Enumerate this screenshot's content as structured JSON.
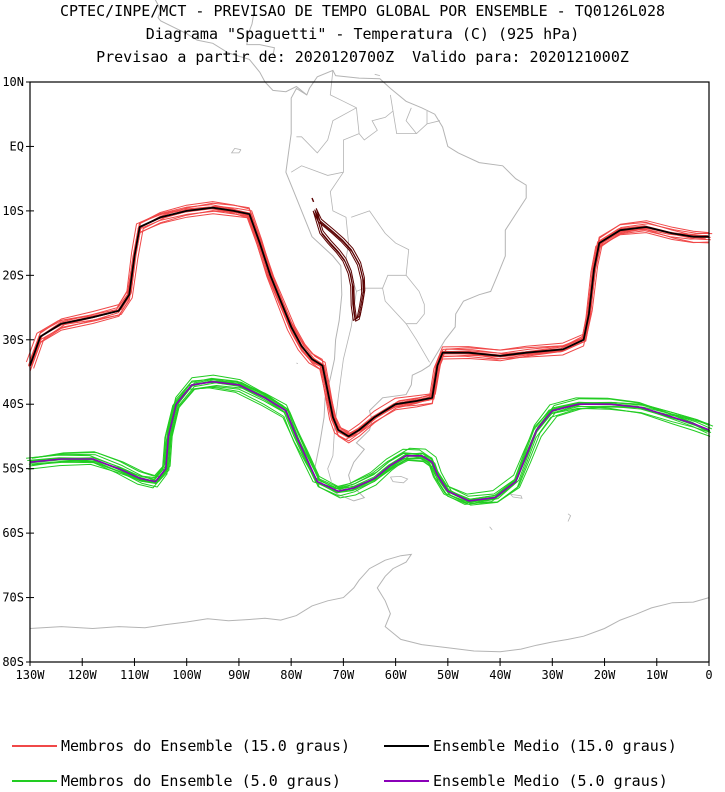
{
  "title": {
    "line1": "CPTEC/INPE/MCT - PREVISAO DE TEMPO GLOBAL POR ENSEMBLE - TQ0126L028",
    "line2": "Diagrama \"Spaguetti\" - Temperatura (C) (925 hPa)",
    "line3": "Previsao a partir de: 2020120700Z  Valido para: 2020121000Z"
  },
  "map": {
    "lon_range": [
      -130,
      0
    ],
    "lat_range": [
      -80,
      10
    ],
    "y_ticks": [
      {
        "value": 10,
        "label": "10N"
      },
      {
        "value": 0,
        "label": "EQ"
      },
      {
        "value": -10,
        "label": "10S"
      },
      {
        "value": -20,
        "label": "20S"
      },
      {
        "value": -30,
        "label": "30S"
      },
      {
        "value": -40,
        "label": "40S"
      },
      {
        "value": -50,
        "label": "50S"
      },
      {
        "value": -60,
        "label": "60S"
      },
      {
        "value": -70,
        "label": "70S"
      },
      {
        "value": -80,
        "label": "80S"
      }
    ],
    "x_ticks": [
      {
        "value": -130,
        "label": "130W"
      },
      {
        "value": -120,
        "label": "120W"
      },
      {
        "value": -110,
        "label": "110W"
      },
      {
        "value": -100,
        "label": "100W"
      },
      {
        "value": -90,
        "label": "90W"
      },
      {
        "value": -80,
        "label": "80W"
      },
      {
        "value": -70,
        "label": "70W"
      },
      {
        "value": -60,
        "label": "60W"
      },
      {
        "value": -50,
        "label": "50W"
      },
      {
        "value": -40,
        "label": "40W"
      },
      {
        "value": -30,
        "label": "30W"
      },
      {
        "value": -20,
        "label": "20W"
      },
      {
        "value": -10,
        "label": "10W"
      },
      {
        "value": 0,
        "label": "0"
      }
    ],
    "colors": {
      "members_15": "#f04848",
      "mean_15": "#000000",
      "members_5": "#22cc22",
      "mean_5": "#8a00b8",
      "coast": "#b4b4b4",
      "andes_contour": "#5a0000"
    }
  },
  "chart_data": {
    "type": "line",
    "title": "Diagrama \"Spaguetti\" - Temperatura (C) (925 hPa)",
    "x_axis": "longitude (degrees, negative = W)",
    "y_axis": "latitude (degrees, negative = S)",
    "xlim": [
      -130,
      0
    ],
    "ylim": [
      -80,
      10
    ],
    "series": [
      {
        "name": "Ensemble Medio (15.0 graus)",
        "points": [
          [
            -130,
            -34
          ],
          [
            -128,
            -29.5
          ],
          [
            -124,
            -27.5
          ],
          [
            -118,
            -26.5
          ],
          [
            -113,
            -25.5
          ],
          [
            -111,
            -23
          ],
          [
            -110,
            -17
          ],
          [
            -109,
            -12.5
          ],
          [
            -105,
            -11
          ],
          [
            -100,
            -10
          ],
          [
            -95,
            -9.5
          ],
          [
            -91,
            -10
          ],
          [
            -88,
            -10.5
          ],
          [
            -86,
            -15
          ],
          [
            -84,
            -20
          ],
          [
            -82,
            -24
          ],
          [
            -80,
            -28
          ],
          [
            -78,
            -31
          ],
          [
            -76,
            -33
          ],
          [
            -74,
            -34
          ],
          [
            -73,
            -38
          ],
          [
            -72,
            -42
          ],
          [
            -71,
            -44
          ],
          [
            -69,
            -45
          ],
          [
            -67,
            -44
          ],
          [
            -64,
            -42
          ],
          [
            -60,
            -40
          ],
          [
            -56,
            -39.5
          ],
          [
            -53,
            -39
          ],
          [
            -52,
            -34
          ],
          [
            -51,
            -32
          ],
          [
            -46,
            -32
          ],
          [
            -40,
            -32.5
          ],
          [
            -35,
            -32
          ],
          [
            -28,
            -31.5
          ],
          [
            -24,
            -30
          ],
          [
            -23,
            -26
          ],
          [
            -22,
            -19
          ],
          [
            -21,
            -15
          ],
          [
            -17,
            -13
          ],
          [
            -12,
            -12.5
          ],
          [
            -7,
            -13.5
          ],
          [
            -3,
            -14
          ],
          [
            0,
            -14
          ]
        ]
      },
      {
        "name": "Ensemble Medio (5.0 graus)",
        "points": [
          [
            -130,
            -49
          ],
          [
            -124,
            -48.5
          ],
          [
            -118,
            -48.5
          ],
          [
            -113,
            -50
          ],
          [
            -109,
            -51.5
          ],
          [
            -106,
            -52
          ],
          [
            -104,
            -50
          ],
          [
            -103.5,
            -45
          ],
          [
            -102,
            -40
          ],
          [
            -99,
            -37
          ],
          [
            -95,
            -36.5
          ],
          [
            -90,
            -37
          ],
          [
            -85,
            -39
          ],
          [
            -81,
            -41
          ],
          [
            -79,
            -45
          ],
          [
            -77,
            -48.5
          ],
          [
            -75,
            -52
          ],
          [
            -71,
            -53.5
          ],
          [
            -68,
            -53
          ],
          [
            -64,
            -51.5
          ],
          [
            -61,
            -49.5
          ],
          [
            -58,
            -48
          ],
          [
            -55,
            -48
          ],
          [
            -53,
            -49
          ],
          [
            -52,
            -51
          ],
          [
            -50,
            -53.5
          ],
          [
            -46,
            -55
          ],
          [
            -41,
            -54.5
          ],
          [
            -37,
            -52
          ],
          [
            -35,
            -48
          ],
          [
            -33,
            -44
          ],
          [
            -30,
            -41
          ],
          [
            -25,
            -40
          ],
          [
            -19,
            -40
          ],
          [
            -13,
            -40.5
          ],
          [
            -7,
            -42
          ],
          [
            -3,
            -43
          ],
          [
            0,
            -44
          ]
        ]
      }
    ]
  },
  "legend": {
    "members_15": "Membros do Ensemble (15.0 graus)",
    "mean_15": "Ensemble Medio (15.0 graus)",
    "members_5": "Membros do Ensemble (5.0 graus)",
    "mean_5": "Ensemble Medio (5.0 graus)"
  }
}
